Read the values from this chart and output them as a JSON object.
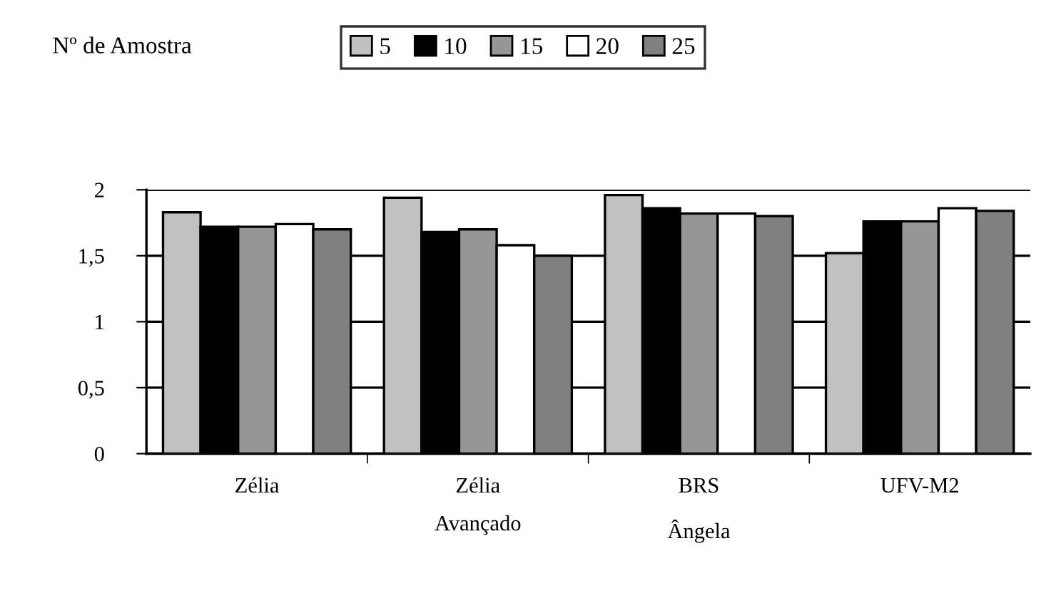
{
  "chart_data": {
    "type": "bar",
    "legend_title": "Nº de Amostra",
    "categories": [
      "Zélia",
      "Zélia\nAvançado",
      "BRS\nÂngela",
      "UFV-M2"
    ],
    "series": [
      {
        "name": "5",
        "color": "#c0c0c0",
        "values": [
          1.83,
          1.94,
          1.96,
          1.52
        ]
      },
      {
        "name": "10",
        "color": "#000000",
        "values": [
          1.72,
          1.68,
          1.86,
          1.76
        ]
      },
      {
        "name": "15",
        "color": "#969696",
        "values": [
          1.72,
          1.7,
          1.82,
          1.76
        ]
      },
      {
        "name": "20",
        "color": "#ffffff",
        "values": [
          1.74,
          1.58,
          1.82,
          1.86
        ]
      },
      {
        "name": "25",
        "color": "#808080",
        "values": [
          1.7,
          1.5,
          1.8,
          1.84
        ]
      }
    ],
    "ylim": [
      0,
      2
    ],
    "yticks": [
      0,
      {
        "value": 0.5,
        "label": "0,5"
      },
      1,
      {
        "value": 1.5,
        "label": "1,5"
      },
      2
    ],
    "grid": "y",
    "legend": "top"
  }
}
